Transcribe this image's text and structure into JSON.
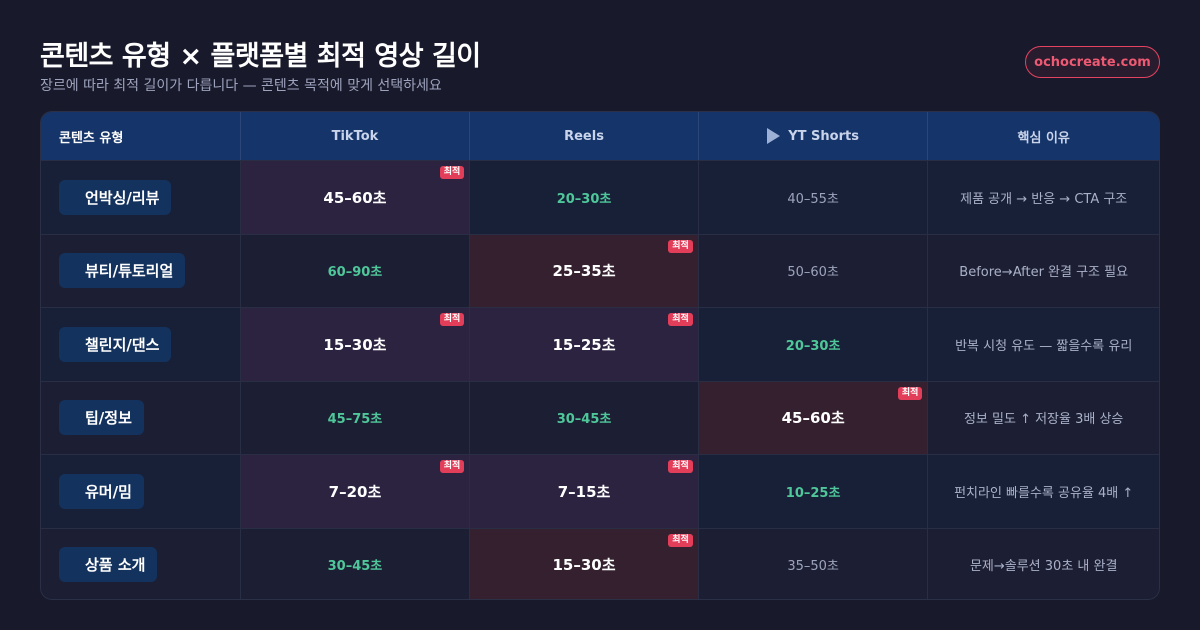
{
  "header": {
    "title": "콘텐츠 유형 × 플랫폼별 최적 영상 길이",
    "subtitle": "장르에 따라 최적 길이가 다릅니다 — 콘텐츠 목적에 맞게 선택하세요",
    "brand_badge": "ochocreate.com"
  },
  "table": {
    "columns": [
      "콘텐츠 유형",
      "TikTok",
      "Reels",
      "YT Shorts",
      "핵심 이유"
    ],
    "shorts_icon": "play-icon",
    "best_tag": "최적",
    "rows": [
      {
        "type": "언박싱/리뷰",
        "tiktok": "45–60초",
        "reels": "20–30초",
        "shorts": "40–55초",
        "reason": "제품 공개 → 반응 → CTA 구조"
      },
      {
        "type": "뷰티/튜토리얼",
        "tiktok": "60–90초",
        "reels": "25–35초",
        "shorts": "50–60초",
        "reason": "Before→After 완결 구조 필요"
      },
      {
        "type": "챌린지/댄스",
        "tiktok": "15–30초",
        "reels": "15–25초",
        "shorts": "20–30초",
        "reason": "반복 시청 유도 — 짧을수록 유리"
      },
      {
        "type": "팁/정보",
        "tiktok": "45–75초",
        "reels": "30–45초",
        "shorts": "45–60초",
        "reason": "정보 밀도 ↑ 저장율 3배 상승"
      },
      {
        "type": "유머/밈",
        "tiktok": "7–20초",
        "reels": "7–15초",
        "shorts": "10–25초",
        "reason": "펀치라인 빠를수록 공유율 4배 ↑"
      },
      {
        "type": "상품 소개",
        "tiktok": "30–45초",
        "reels": "15–30초",
        "shorts": "35–50초",
        "reason": "문제→솔루션 30초 내 완결"
      }
    ]
  },
  "colors": {
    "background": "#181a2b",
    "header_row": "#15356a",
    "accent_red": "#e23e5a",
    "good_green": "#4fc79a"
  }
}
